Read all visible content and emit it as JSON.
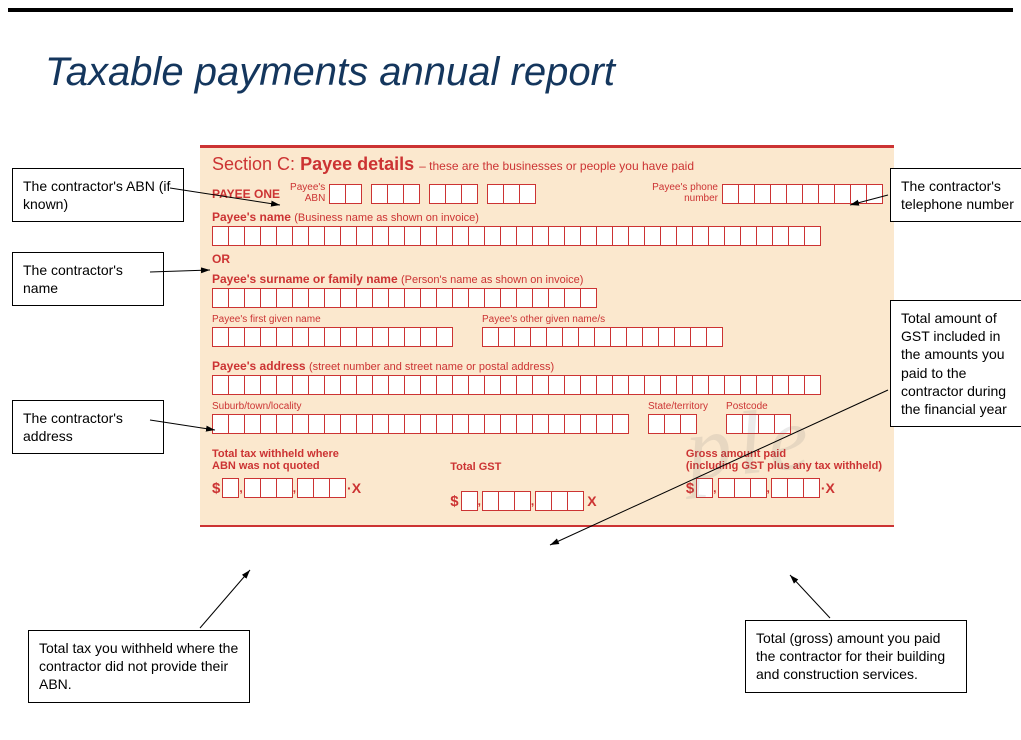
{
  "title": "Taxable payments annual report",
  "form": {
    "section_label": "Section C:",
    "section_title": "Payee details",
    "section_sub": "– these are the businesses or people you have paid",
    "payee_one": "PAYEE ONE",
    "payee_abn_label": "Payee's\nABN",
    "payee_phone_label": "Payee's phone\nnumber",
    "payee_name_label": "Payee's name",
    "payee_name_hint": "(Business name as shown on invoice)",
    "or": "OR",
    "surname_label": "Payee's surname or family name",
    "surname_hint": "(Person's name as shown on invoice)",
    "first_given_label": "Payee's first given name",
    "other_given_label": "Payee's other given name/s",
    "address_label": "Payee's address",
    "address_hint": "(street number and street name or postal address)",
    "suburb_label": "Suburb/town/locality",
    "state_label": "State/territory",
    "postcode_label": "Postcode",
    "total_tax_label": "Total tax withheld where\nABN was not quoted",
    "total_gst_label": "Total GST",
    "gross_label": "Gross amount paid\n(including GST plus any tax withheld)",
    "box_counts": {
      "abn_groups": [
        2,
        3,
        3,
        3
      ],
      "phone": 10,
      "name": 38,
      "surname": 24,
      "first_given": 15,
      "other_given": 15,
      "address": 38,
      "suburb": 26,
      "state": 3,
      "postcode": 4,
      "money_group": [
        1,
        3,
        3
      ]
    },
    "colors": {
      "form_bg": "#fbe8ce",
      "form_text": "#cc3333",
      "form_border": "#cc3333",
      "box_bg": "#ffffff",
      "title_color": "#14365d"
    }
  },
  "callouts": {
    "abn": "The contractor's ABN (if known)",
    "name": "The contractor's name",
    "address": "The contractor's address",
    "withheld": "Total tax you withheld where the contractor did not provide their ABN.",
    "phone": "The contractor's telephone number",
    "gst": "Total amount of GST included in the amounts you paid to the contractor during the financial year",
    "gross": "Total (gross) amount you paid the contractor for their building and construction services."
  },
  "watermark": "ple"
}
